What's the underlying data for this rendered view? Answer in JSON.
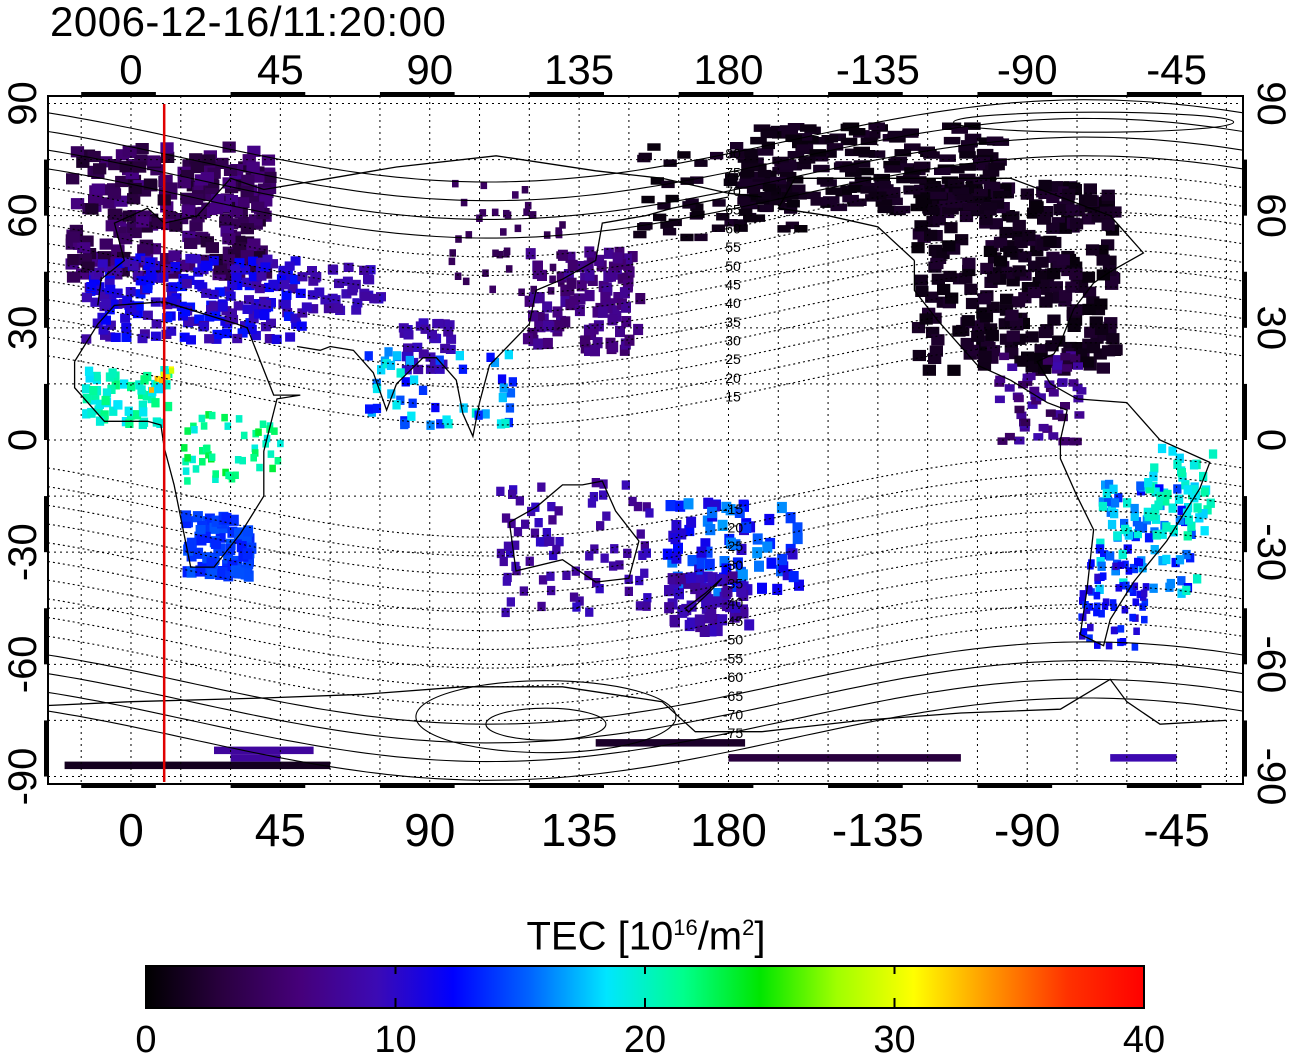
{
  "timestamp": "2006-12-16/11:20:00",
  "map": {
    "lon_ticks": [
      0,
      45,
      90,
      135,
      180,
      -135,
      -90,
      -45
    ],
    "lon_tick_labels": [
      "0",
      "45",
      "90",
      "135",
      "180",
      "-135",
      "-90",
      "-45"
    ],
    "lat_ticks": [
      90,
      60,
      30,
      0,
      -30,
      -60,
      -90
    ],
    "lat_tick_labels": [
      "90",
      "60",
      "30",
      "0",
      "-30",
      "-60",
      "-90"
    ],
    "lon_range": [
      -25,
      335
    ],
    "lat_range": [
      -92,
      92
    ],
    "terminator_longitude": 10,
    "terminator_color": "#e00000",
    "contour_labels": [
      "80",
      "75",
      "70",
      "65",
      "60",
      "55",
      "50",
      "45",
      "40",
      "35",
      "30",
      "25",
      "20",
      "15",
      "-15",
      "-20",
      "-25",
      "-30",
      "-35",
      "-40",
      "-45",
      "-50",
      "-55",
      "-60",
      "-65",
      "-70",
      "-75"
    ]
  },
  "colorbar": {
    "title": "TEC  [10",
    "title_exp1": "16",
    "title_mid": "/m",
    "title_exp2": "2",
    "title_end": "]",
    "min": 0,
    "max": 40,
    "tick_values": [
      0,
      10,
      20,
      30,
      40
    ],
    "tick_labels": [
      "0",
      "10",
      "20",
      "30",
      "40"
    ],
    "colors": [
      "#000000",
      "#2a0040",
      "#46007a",
      "#3c0ab4",
      "#0000ff",
      "#0064ff",
      "#00e6ff",
      "#00ff8c",
      "#00e600",
      "#a0ff00",
      "#ffff00",
      "#ff9600",
      "#ff3200",
      "#ff0000"
    ]
  }
}
